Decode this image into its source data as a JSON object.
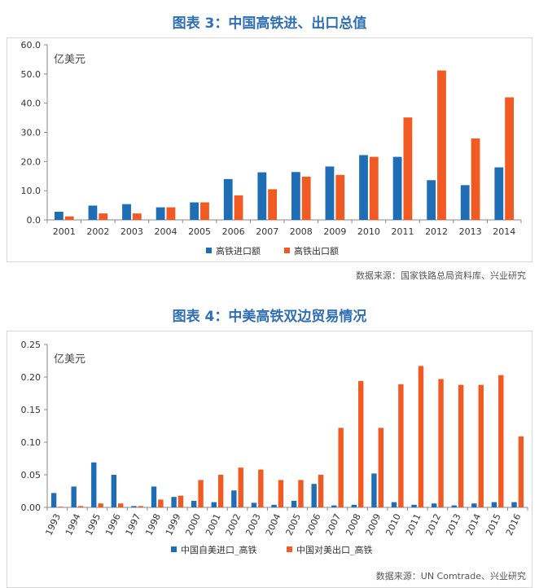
{
  "figures": [
    {
      "title": "图表 3：中国高铁进、出口总值",
      "source": "数据来源：国家铁路总局资料库、兴业研究",
      "chart_data": {
        "type": "bar",
        "unit": "亿美元",
        "categories": [
          "2001",
          "2002",
          "2003",
          "2004",
          "2005",
          "2006",
          "2007",
          "2008",
          "2009",
          "2010",
          "2011",
          "2012",
          "2013",
          "2014"
        ],
        "series": [
          {
            "name": "高铁进口额",
            "color": "#1f6eb5",
            "values": [
              2.8,
              4.9,
              5.4,
              4.3,
              6.0,
              14.0,
              16.3,
              16.4,
              18.3,
              22.2,
              21.6,
              13.6,
              11.9,
              18.0
            ]
          },
          {
            "name": "高铁出口额",
            "color": "#f15a22",
            "values": [
              1.2,
              2.2,
              2.2,
              4.3,
              6.0,
              8.4,
              10.5,
              14.8,
              15.4,
              21.6,
              35.1,
              51.2,
              27.9,
              42.0
            ]
          }
        ],
        "ylim": [
          0,
          60
        ],
        "yticks": [
          "0.0",
          "10.0",
          "20.0",
          "30.0",
          "40.0",
          "50.0",
          "60.0"
        ],
        "grid": false,
        "legend_position": "bottom"
      }
    },
    {
      "title": "图表 4：中美高铁双边贸易情况",
      "source": "数据来源：UN Comtrade、兴业研究",
      "chart_data": {
        "type": "bar",
        "unit": "亿美元",
        "categories": [
          "1993",
          "1994",
          "1995",
          "1996",
          "1997",
          "1998",
          "1999",
          "2000",
          "2001",
          "2002",
          "2003",
          "2004",
          "2005",
          "2006",
          "2007",
          "2008",
          "2009",
          "2010",
          "2011",
          "2012",
          "2013",
          "2014",
          "2015",
          "2016"
        ],
        "series": [
          {
            "name": "中国自美进口_高铁",
            "color": "#1f6eb5",
            "values": [
              0.022,
              0.032,
              0.069,
              0.05,
              0.002,
              0.032,
              0.016,
              0.01,
              0.008,
              0.026,
              0.007,
              0.004,
              0.01,
              0.036,
              0.003,
              0.004,
              0.052,
              0.008,
              0.004,
              0.006,
              0.003,
              0.006,
              0.008,
              0.008
            ]
          },
          {
            "name": "中国对美出口_高铁",
            "color": "#f15a22",
            "values": [
              0.001,
              0.002,
              0.006,
              0.006,
              0.002,
              0.012,
              0.018,
              0.042,
              0.05,
              0.061,
              0.058,
              0.042,
              0.042,
              0.05,
              0.122,
              0.194,
              0.122,
              0.189,
              0.217,
              0.197,
              0.188,
              0.188,
              0.203,
              0.109
            ]
          }
        ],
        "ylim": [
          0,
          0.25
        ],
        "yticks": [
          "0.00",
          "0.05",
          "0.10",
          "0.15",
          "0.20",
          "0.25"
        ],
        "grid": false,
        "legend_position": "bottom"
      }
    }
  ]
}
